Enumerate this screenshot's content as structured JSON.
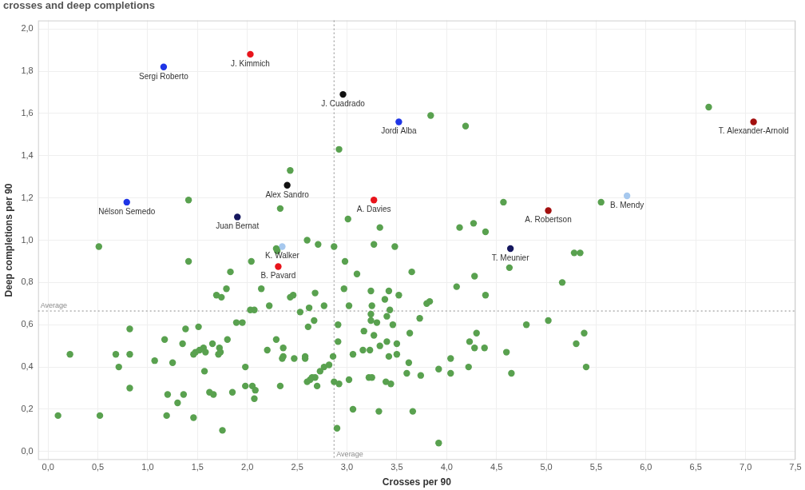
{
  "chart_data": {
    "type": "scatter",
    "title": "crosses and deep completions",
    "x_label": "Crosses per 90",
    "y_label": "Deep completions per 90",
    "xlim": [
      -0.1,
      7.5
    ],
    "ylim": [
      -0.04,
      2.04
    ],
    "xticks": [
      {
        "value": 0,
        "label": "0,0"
      },
      {
        "value": 0.5,
        "label": "0,5"
      },
      {
        "value": 1,
        "label": "1,0"
      },
      {
        "value": 1.5,
        "label": "1,5"
      },
      {
        "value": 2,
        "label": "2,0"
      },
      {
        "value": 2.5,
        "label": "2,5"
      },
      {
        "value": 3,
        "label": "3,0"
      },
      {
        "value": 3.5,
        "label": "3,5"
      },
      {
        "value": 4,
        "label": "4,0"
      },
      {
        "value": 4.5,
        "label": "4,5"
      },
      {
        "value": 5,
        "label": "5,0"
      },
      {
        "value": 5.5,
        "label": "5,5"
      },
      {
        "value": 6,
        "label": "6,0"
      },
      {
        "value": 6.5,
        "label": "6,5"
      },
      {
        "value": 7,
        "label": "7,0"
      },
      {
        "value": 7.5,
        "label": "7,5"
      }
    ],
    "yticks": [
      {
        "value": 0,
        "label": "0,0"
      },
      {
        "value": 0.2,
        "label": "0,2"
      },
      {
        "value": 0.4,
        "label": "0,4"
      },
      {
        "value": 0.6,
        "label": "0,6"
      },
      {
        "value": 0.8,
        "label": "0,8"
      },
      {
        "value": 1,
        "label": "1,0"
      },
      {
        "value": 1.2,
        "label": "1,2"
      },
      {
        "value": 1.4,
        "label": "1,4"
      },
      {
        "value": 1.6,
        "label": "1,6"
      },
      {
        "value": 1.8,
        "label": "1,8"
      },
      {
        "value": 2,
        "label": "2,0"
      }
    ],
    "grid": true,
    "annotations": [
      {
        "axis": "x",
        "value": 2.87,
        "label": "Average"
      },
      {
        "axis": "y",
        "value": 0.665,
        "label": "Average"
      }
    ],
    "x": [
      1.16,
      2.03,
      2.96,
      3.52,
      7.08,
      2.4,
      3.27,
      0.79,
      1.9,
      5.02,
      5.81,
      2.35,
      4.64,
      2.31,
      6.63,
      3.84,
      4.19,
      2.92,
      2.43,
      1.41,
      2.33,
      4.57,
      5.55,
      3.01,
      4.27,
      4.13,
      4.39,
      3.33,
      0.51,
      2.6,
      2.71,
      3.27,
      3.48,
      2.87,
      2.29,
      2.3,
      5.28,
      5.34,
      1.41,
      2.04,
      2.98,
      1.83,
      3.1,
      3.65,
      4.28,
      4.63,
      5.16,
      4.1,
      2.14,
      1.79,
      2.97,
      3.24,
      3.42,
      1.69,
      1.74,
      2.43,
      2.46,
      2.68,
      3.38,
      3.52,
      3.83,
      3.8,
      4.39,
      3.25,
      3.43,
      2.03,
      2.07,
      2.22,
      2.62,
      2.77,
      3.02,
      0.82,
      1.38,
      1.51,
      1.89,
      1.95,
      2.53,
      2.61,
      2.67,
      2.91,
      3.24,
      3.24,
      3.3,
      3.4,
      3.46,
      3.73,
      3.63,
      3.17,
      3.27,
      3.5,
      3.4,
      4.8,
      5.02,
      4.3,
      4.23,
      5.3,
      5.38,
      1.17,
      1.35,
      1.65,
      1.8,
      1.56,
      1.52,
      1.48,
      1.46,
      1.58,
      1.72,
      1.71,
      1.73,
      1.25,
      1.07,
      0.82,
      0.68,
      0.22,
      0.71,
      1.57,
      1.98,
      2.2,
      2.29,
      2.36,
      2.36,
      2.35,
      2.47,
      2.58,
      2.58,
      2.65,
      2.68,
      2.63,
      2.6,
      2.73,
      2.77,
      2.82,
      2.86,
      2.91,
      3.06,
      3.16,
      3.23,
      3.22,
      3.25,
      3.33,
      3.42,
      3.39,
      3.44,
      3.5,
      3.62,
      3.6,
      3.74,
      4.04,
      4.04,
      4.22,
      4.28,
      4.38,
      4.6,
      4.65,
      5.4,
      0.82,
      1.2,
      1.36,
      1.62,
      1.66,
      1.98,
      2.05,
      2.08,
      2.07,
      2.33,
      2.7,
      1.85,
      2.87,
      3.02,
      2.92,
      3.06,
      3.32,
      3.66,
      1.3,
      1.19,
      1.46,
      1.75,
      0.1,
      0.52,
      2.9,
      3.92,
      3.92
    ],
    "values": [
      1.82,
      1.88,
      1.69,
      1.56,
      1.56,
      1.26,
      1.19,
      1.18,
      1.11,
      1.14,
      1.21,
      0.97,
      0.96,
      0.875,
      1.63,
      1.59,
      1.54,
      1.43,
      1.33,
      1.19,
      1.15,
      1.18,
      1.18,
      1.1,
      1.08,
      1.06,
      1.04,
      1.06,
      0.97,
      1.0,
      0.98,
      0.98,
      0.97,
      0.97,
      0.96,
      0.95,
      0.94,
      0.94,
      0.9,
      0.9,
      0.9,
      0.85,
      0.84,
      0.85,
      0.83,
      0.87,
      0.8,
      0.78,
      0.77,
      0.77,
      0.77,
      0.76,
      0.76,
      0.74,
      0.73,
      0.73,
      0.74,
      0.75,
      0.72,
      0.74,
      0.71,
      0.7,
      0.74,
      0.69,
      0.67,
      0.67,
      0.67,
      0.69,
      0.68,
      0.69,
      0.69,
      0.58,
      0.58,
      0.59,
      0.61,
      0.61,
      0.66,
      0.59,
      0.62,
      0.6,
      0.65,
      0.62,
      0.61,
      0.64,
      0.6,
      0.63,
      0.56,
      0.57,
      0.55,
      0.51,
      0.52,
      0.6,
      0.62,
      0.56,
      0.52,
      0.51,
      0.56,
      0.53,
      0.51,
      0.51,
      0.53,
      0.49,
      0.48,
      0.47,
      0.46,
      0.47,
      0.49,
      0.46,
      0.47,
      0.42,
      0.43,
      0.46,
      0.46,
      0.46,
      0.4,
      0.38,
      0.4,
      0.48,
      0.53,
      0.49,
      0.45,
      0.44,
      0.44,
      0.44,
      0.45,
      0.35,
      0.35,
      0.34,
      0.33,
      0.38,
      0.4,
      0.41,
      0.45,
      0.52,
      0.46,
      0.48,
      0.48,
      0.35,
      0.35,
      0.5,
      0.45,
      0.33,
      0.32,
      0.46,
      0.42,
      0.37,
      0.36,
      0.44,
      0.37,
      0.4,
      0.49,
      0.49,
      0.47,
      0.37,
      0.4,
      0.3,
      0.27,
      0.27,
      0.28,
      0.27,
      0.31,
      0.31,
      0.29,
      0.25,
      0.31,
      0.31,
      0.28,
      0.33,
      0.34,
      0.32,
      0.2,
      0.19,
      0.19,
      0.23,
      0.17,
      0.16,
      0.1,
      0.17,
      0.17,
      0.11,
      0.04,
      0.39
    ],
    "labels": [
      "Sergi Roberto",
      "J. Kimmich",
      "J. Cuadrado",
      "Jordi Alba",
      "T. Alexander-Arnold",
      "Alex Sandro",
      "A. Davies",
      "Nélson Semedo",
      "Juan Bernat",
      "A. Robertson",
      "B. Mendy",
      "K. Walker",
      "T. Meunier",
      "B. Pavard",
      null,
      null,
      null,
      null,
      null,
      null,
      null,
      null,
      null,
      null,
      null,
      null,
      null,
      null,
      null,
      null,
      null,
      null,
      null,
      null,
      null,
      null,
      null,
      null,
      null,
      null,
      null,
      null,
      null,
      null,
      null,
      null,
      null,
      null,
      null,
      null,
      null,
      null,
      null,
      null,
      null,
      null,
      null,
      null,
      null,
      null,
      null,
      null,
      null,
      null,
      null,
      null,
      null,
      null,
      null,
      null,
      null,
      null,
      null,
      null,
      null,
      null,
      null,
      null,
      null,
      null,
      null,
      null,
      null,
      null,
      null,
      null,
      null,
      null,
      null,
      null,
      null,
      null,
      null,
      null,
      null,
      null,
      null,
      null,
      null,
      null,
      null,
      null,
      null,
      null,
      null,
      null,
      null,
      null,
      null,
      null,
      null,
      null,
      null,
      null,
      null,
      null,
      null,
      null,
      null,
      null,
      null,
      null,
      null,
      null,
      null,
      null,
      null,
      null,
      null,
      null,
      null,
      null,
      null,
      null,
      null,
      null,
      null,
      null,
      null,
      null,
      null,
      null,
      null,
      null,
      null,
      null,
      null,
      null,
      null,
      null,
      null,
      null,
      null,
      null,
      null,
      null,
      null,
      null,
      null,
      null,
      null,
      null,
      null,
      null,
      null,
      null,
      null,
      null,
      null,
      null,
      null,
      null,
      null,
      null,
      null,
      null,
      null,
      null,
      null,
      null,
      null,
      null
    ],
    "colors": [
      "#1f35e6",
      "#e8141b",
      "#111111",
      "#1f35e6",
      "#a3100f",
      "#111111",
      "#e8141b",
      "#1f35e6",
      "#15175e",
      "#a3100f",
      "#a6c8ee",
      "#a6c8ee",
      "#15175e",
      "#e8141b",
      "#59a14f",
      "#59a14f",
      "#59a14f",
      "#59a14f",
      "#59a14f",
      "#59a14f",
      "#59a14f",
      "#59a14f",
      "#59a14f",
      "#59a14f",
      "#59a14f",
      "#59a14f",
      "#59a14f",
      "#59a14f",
      "#59a14f",
      "#59a14f",
      "#59a14f",
      "#59a14f",
      "#59a14f",
      "#59a14f",
      "#59a14f",
      "#59a14f",
      "#59a14f",
      "#59a14f",
      "#59a14f",
      "#59a14f",
      "#59a14f",
      "#59a14f",
      "#59a14f",
      "#59a14f",
      "#59a14f",
      "#59a14f",
      "#59a14f",
      "#59a14f",
      "#59a14f",
      "#59a14f",
      "#59a14f",
      "#59a14f",
      "#59a14f",
      "#59a14f",
      "#59a14f",
      "#59a14f",
      "#59a14f",
      "#59a14f",
      "#59a14f",
      "#59a14f",
      "#59a14f",
      "#59a14f",
      "#59a14f",
      "#59a14f",
      "#59a14f",
      "#59a14f",
      "#59a14f",
      "#59a14f",
      "#59a14f",
      "#59a14f",
      "#59a14f",
      "#59a14f",
      "#59a14f",
      "#59a14f",
      "#59a14f",
      "#59a14f",
      "#59a14f",
      "#59a14f",
      "#59a14f",
      "#59a14f",
      "#59a14f",
      "#59a14f",
      "#59a14f",
      "#59a14f",
      "#59a14f",
      "#59a14f",
      "#59a14f",
      "#59a14f",
      "#59a14f",
      "#59a14f",
      "#59a14f",
      "#59a14f",
      "#59a14f",
      "#59a14f",
      "#59a14f",
      "#59a14f",
      "#59a14f",
      "#59a14f",
      "#59a14f",
      "#59a14f",
      "#59a14f",
      "#59a14f",
      "#59a14f",
      "#59a14f",
      "#59a14f",
      "#59a14f",
      "#59a14f",
      "#59a14f",
      "#59a14f",
      "#59a14f",
      "#59a14f",
      "#59a14f",
      "#59a14f",
      "#59a14f",
      "#59a14f",
      "#59a14f",
      "#59a14f",
      "#59a14f",
      "#59a14f",
      "#59a14f",
      "#59a14f",
      "#59a14f",
      "#59a14f",
      "#59a14f",
      "#59a14f",
      "#59a14f",
      "#59a14f",
      "#59a14f",
      "#59a14f",
      "#59a14f",
      "#59a14f",
      "#59a14f",
      "#59a14f",
      "#59a14f",
      "#59a14f",
      "#59a14f",
      "#59a14f",
      "#59a14f",
      "#59a14f",
      "#59a14f",
      "#59a14f",
      "#59a14f",
      "#59a14f",
      "#59a14f",
      "#59a14f",
      "#59a14f",
      "#59a14f",
      "#59a14f",
      "#59a14f",
      "#59a14f",
      "#59a14f",
      "#59a14f",
      "#59a14f",
      "#59a14f",
      "#59a14f",
      "#59a14f",
      "#59a14f",
      "#59a14f",
      "#59a14f",
      "#59a14f",
      "#59a14f",
      "#59a14f",
      "#59a14f",
      "#59a14f",
      "#59a14f",
      "#59a14f",
      "#59a14f",
      "#59a14f",
      "#59a14f",
      "#59a14f",
      "#59a14f",
      "#59a14f",
      "#59a14f",
      "#59a14f",
      "#59a14f",
      "#59a14f",
      "#59a14f",
      "#59a14f",
      "#59a14f",
      "#59a14f",
      "#59a14f",
      "#59a14f"
    ]
  }
}
